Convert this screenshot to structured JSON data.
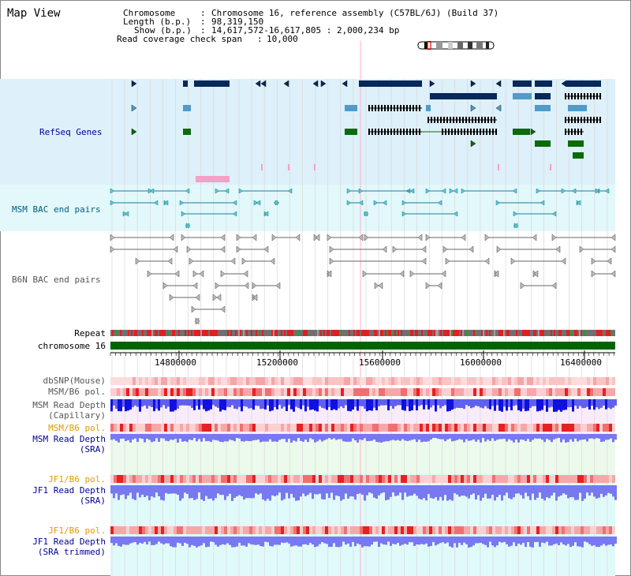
{
  "title": "Map View",
  "info": {
    "chromosome_key": "Chromosome",
    "chromosome_val": "Chromosome 16, reference assembly (C57BL/6J) (Build 37)",
    "length_key": "Length (b.p.)",
    "length_val": "98,319,150",
    "show_key": "Show (b.p.)",
    "show_val": "14,617,572-16,617,805 : 2,000,234 bp",
    "coverage_key": "Read coverage check span",
    "coverage_val": "10,000"
  },
  "tracks": {
    "refseq": "RefSeq Genes",
    "msm_bac": "MSM BAC end pairs",
    "b6n_bac": "B6N BAC end pairs",
    "repeat": "Repeat",
    "chromosome": "chromosome 16",
    "dbsnp": "dbSNP(Mouse)",
    "msm_b6_pol_1": "MSM/B6 pol.",
    "msm_depth_cap_1": "MSM Read Depth",
    "msm_depth_cap_2": "(Capillary)",
    "msm_b6_pol_2": "MSM/B6 pol.",
    "msm_depth_sra_1": "MSM Read Depth",
    "msm_depth_sra_2": "(SRA)",
    "jf1_b6_pol_1": "JF1/B6 pol.",
    "jf1_depth_sra_1": "JF1 Read Depth",
    "jf1_depth_sra_2": "(SRA)",
    "jf1_b6_pol_2": "JF1/B6 pol.",
    "jf1_depth_trim_1": "JF1 Read Depth",
    "jf1_depth_trim_2": "(SRA trimmed)"
  },
  "axis_ticks": [
    "14800000",
    "15200000",
    "15600000",
    "16000000",
    "16400000"
  ],
  "colors": {
    "refseq_bg": "#def0fa",
    "bac_bg": "#e2f8fa",
    "track_label_blue": "#000099",
    "track_label_teal": "#006080",
    "track_label_orange": "#e69900",
    "track_label_gray": "#555555",
    "gene_dark": "#06285a",
    "gene_light": "#4f9cc8",
    "gene_green": "#0b6b0b",
    "chromosome_green": "#006400"
  }
}
